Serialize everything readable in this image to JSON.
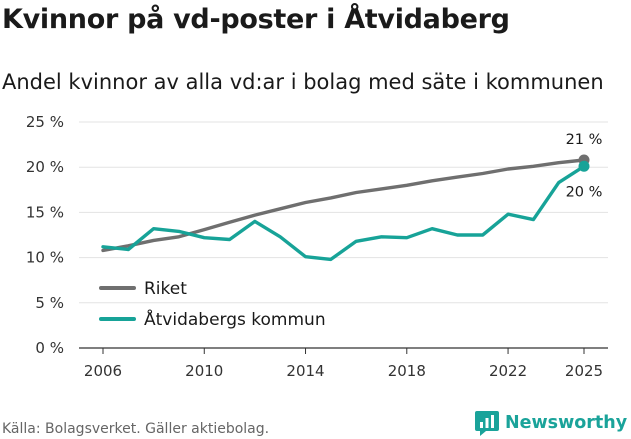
{
  "header": {
    "title": "Kvinnor på vd-poster i Åtvidaberg",
    "subtitle": "Andel kvinnor av alla vd:ar i bolag med säte i kommunen"
  },
  "footer": {
    "source": "Källa: Bolagsverket. Gäller aktiebolag.",
    "brand": "Newsworthy"
  },
  "colors": {
    "riket": "#6f6f6f",
    "kommun": "#17a398",
    "grid": "#e3e3e3",
    "brand": "#1aa39a"
  },
  "chart_data": {
    "type": "line",
    "title": "Kvinnor på vd-poster i Åtvidaberg",
    "subtitle": "Andel kvinnor av alla vd:ar i bolag med säte i kommunen",
    "xlabel": "",
    "ylabel": "",
    "xlim": [
      2005.5,
      2025.5
    ],
    "ylim": [
      0,
      25
    ],
    "x_ticks": [
      2006,
      2010,
      2014,
      2018,
      2022,
      2025
    ],
    "x_tick_labels": [
      "2006",
      "2010",
      "2014",
      "2018",
      "2022",
      "2025"
    ],
    "y_ticks": [
      0,
      5,
      10,
      15,
      20,
      25
    ],
    "y_tick_labels": [
      "0 %",
      "5 %",
      "10 %",
      "15 %",
      "20 %",
      "25 %"
    ],
    "grid": true,
    "legend_position": "bottom-left",
    "series": [
      {
        "name": "Riket",
        "color": "#6f6f6f",
        "x": [
          2006,
          2007,
          2008,
          2009,
          2010,
          2011,
          2012,
          2013,
          2014,
          2015,
          2016,
          2017,
          2018,
          2019,
          2020,
          2021,
          2022,
          2023,
          2024,
          2025
        ],
        "values": [
          10.8,
          11.3,
          11.9,
          12.3,
          13.1,
          13.9,
          14.7,
          15.4,
          16.1,
          16.6,
          17.2,
          17.6,
          18.0,
          18.5,
          18.9,
          19.3,
          19.8,
          20.1,
          20.5,
          20.8
        ],
        "end_label": "21 %"
      },
      {
        "name": "Åtvidabergs kommun",
        "color": "#17a398",
        "x": [
          2006,
          2007,
          2008,
          2009,
          2010,
          2011,
          2012,
          2013,
          2014,
          2015,
          2016,
          2017,
          2018,
          2019,
          2020,
          2021,
          2022,
          2023,
          2024,
          2025
        ],
        "values": [
          11.2,
          10.9,
          13.2,
          12.9,
          12.2,
          12.0,
          14.0,
          12.3,
          10.1,
          9.8,
          11.8,
          12.3,
          12.2,
          13.2,
          12.5,
          12.5,
          14.8,
          14.2,
          18.3,
          20.1
        ],
        "end_label": "20 %"
      }
    ]
  }
}
